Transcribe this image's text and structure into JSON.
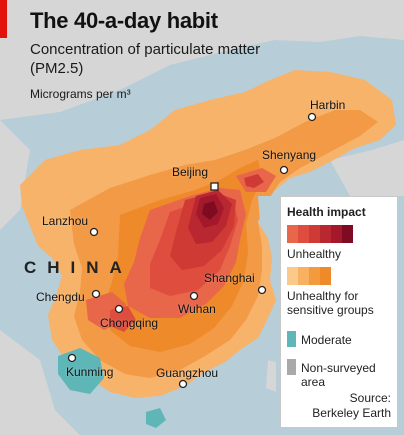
{
  "header": {
    "title": "The 40-a-day habit",
    "subtitle": "Concentration of particulate matter (PM2.5)",
    "units": "Micrograms per m³"
  },
  "map": {
    "country_label": "CHINA",
    "cities": [
      {
        "name": "Harbin"
      },
      {
        "name": "Shenyang"
      },
      {
        "name": "Beijing"
      },
      {
        "name": "Lanzhou"
      },
      {
        "name": "Shanghai"
      },
      {
        "name": "Chengdu"
      },
      {
        "name": "Wuhan"
      },
      {
        "name": "Chongqing"
      },
      {
        "name": "Kunming"
      },
      {
        "name": "Guangzhou"
      }
    ]
  },
  "legend": {
    "title": "Health impact",
    "unhealthy": "Unhealthy",
    "sensitive": "Unhealthy for sensitive groups",
    "moderate": "Moderate",
    "non_surveyed": "Non-surveyed area",
    "source_line1": "Source:",
    "source_line2": "Berkeley Earth",
    "unhealthy_colors": [
      "#e8664a",
      "#de4d3d",
      "#cf3a35",
      "#b92730",
      "#a3182a",
      "#7f0b22"
    ],
    "sensitive_colors": [
      "#fbc98a",
      "#f8b061",
      "#f39a3d",
      "#ee8a2a"
    ],
    "moderate_color": "#5fb6b7",
    "non_surveyed_color": "#a7a9ab"
  },
  "colors": {
    "sea": "#b7cdd8",
    "neighbor_land": "#d6d6d6",
    "accent": "#e3120b"
  }
}
